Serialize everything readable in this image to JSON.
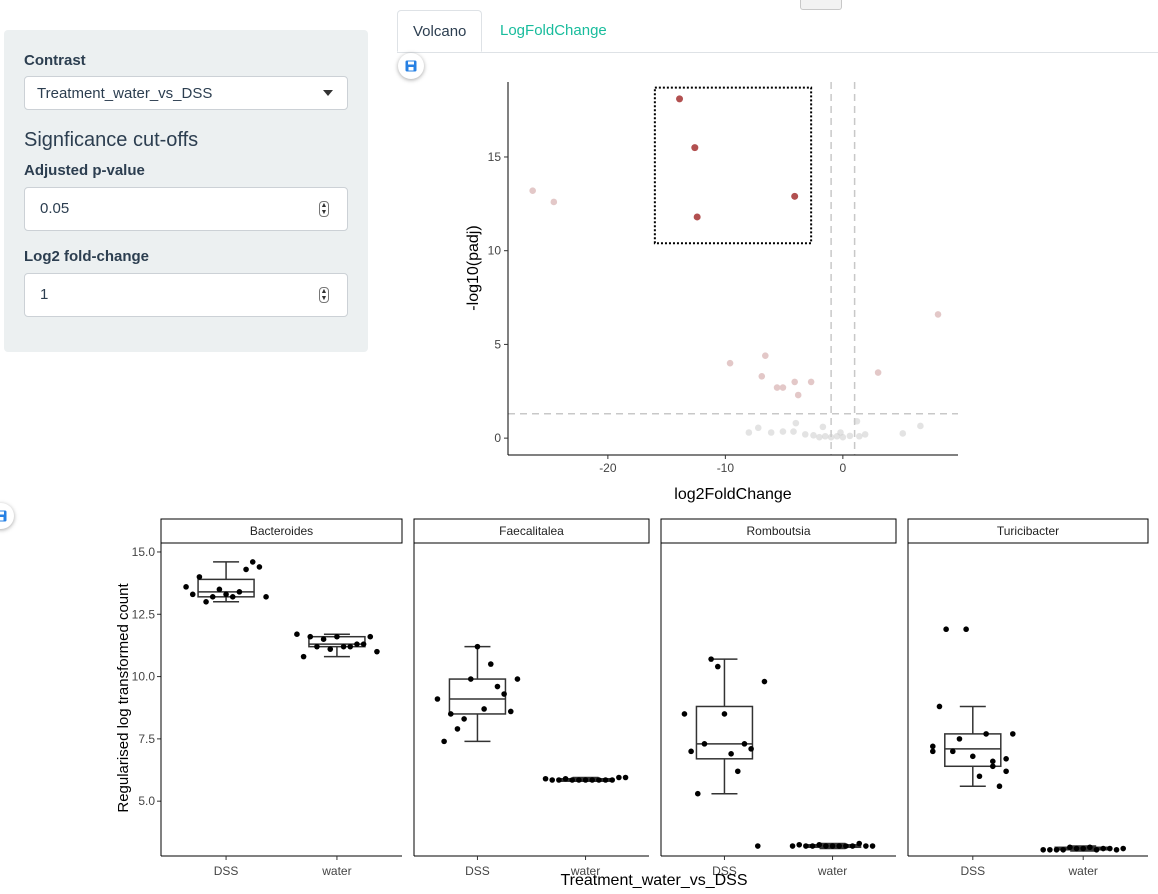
{
  "sidebar": {
    "contrast_label": "Contrast",
    "contrast_value": "Treatment_water_vs_DSS",
    "section_title": "Signficance cut-offs",
    "padj_label": "Adjusted p-value",
    "padj_value": "0.05",
    "lfc_label": "Log2 fold-change",
    "lfc_value": "1"
  },
  "tabs": [
    "Volcano",
    "LogFoldChange"
  ],
  "icons": {
    "save": "floppy-disk-icon",
    "dropdown": "caret-down-icon",
    "spinner": "number-spinner-icon"
  },
  "colors": {
    "accent": "#18bc9c",
    "sig_point": "#b25050",
    "nonsig_point": "#e3c8c8",
    "ns_point": "#cccccc",
    "save_icon": "#2780e3"
  },
  "chart_data": [
    {
      "type": "scatter",
      "title": "",
      "xlabel": "log2FoldChange",
      "ylabel": "-log10(padj)",
      "xlim": [
        -28.5,
        9.8
      ],
      "ylim": [
        -0.9,
        19
      ],
      "xticks": [
        -20,
        -10,
        0
      ],
      "yticks": [
        0,
        5,
        10,
        15
      ],
      "grid": false,
      "thresholds": {
        "x": [
          -1,
          1
        ],
        "y": 1.3
      },
      "selection_box": {
        "x": [
          -16,
          -2.7
        ],
        "y": [
          10.4,
          18.7
        ]
      },
      "significant_points": [
        {
          "x": -13.9,
          "y": 18.1
        },
        {
          "x": -12.6,
          "y": 15.5
        },
        {
          "x": -12.4,
          "y": 11.8
        },
        {
          "x": -4.1,
          "y": 12.9
        }
      ],
      "other_points": [
        {
          "x": -26.4,
          "y": 13.2
        },
        {
          "x": -24.6,
          "y": 12.6
        },
        {
          "x": 8.1,
          "y": 6.6
        },
        {
          "x": -9.6,
          "y": 4.0
        },
        {
          "x": -6.6,
          "y": 4.4
        },
        {
          "x": -6.9,
          "y": 3.3
        },
        {
          "x": -5.6,
          "y": 2.7
        },
        {
          "x": -5.1,
          "y": 2.7
        },
        {
          "x": -4.1,
          "y": 3.0
        },
        {
          "x": -2.7,
          "y": 3.0
        },
        {
          "x": -3.8,
          "y": 2.3
        },
        {
          "x": 3.0,
          "y": 3.5
        }
      ],
      "ns_points": [
        {
          "x": -7.2,
          "y": 0.55
        },
        {
          "x": -6.1,
          "y": 0.3
        },
        {
          "x": -5.1,
          "y": 0.35
        },
        {
          "x": -4.2,
          "y": 0.35
        },
        {
          "x": -3.2,
          "y": 0.2
        },
        {
          "x": -2.5,
          "y": 0.15
        },
        {
          "x": -2.0,
          "y": 0.05
        },
        {
          "x": -1.5,
          "y": 0.1
        },
        {
          "x": -1.0,
          "y": 0.05
        },
        {
          "x": -0.5,
          "y": 0.1
        },
        {
          "x": 0.0,
          "y": 0.05
        },
        {
          "x": 0.6,
          "y": 0.12
        },
        {
          "x": 1.4,
          "y": 0.1
        },
        {
          "x": 1.9,
          "y": 0.2
        },
        {
          "x": 5.1,
          "y": 0.25
        },
        {
          "x": 6.6,
          "y": 0.65
        },
        {
          "x": -4.0,
          "y": 0.8
        },
        {
          "x": -1.7,
          "y": 0.6
        },
        {
          "x": 1.2,
          "y": 0.9
        },
        {
          "x": -8.0,
          "y": 0.3
        },
        {
          "x": -0.2,
          "y": 0.3
        }
      ]
    },
    {
      "type": "box",
      "xlabel": "Treatment_water_vs_DSS",
      "ylabel": "Regularised log transformed count",
      "ylim": [
        2.8,
        15.4
      ],
      "yticks": [
        "15.0",
        "12.5",
        "10.0",
        "7.5",
        "5.0"
      ],
      "ytick_values": [
        15,
        12.5,
        10,
        7.5,
        5
      ],
      "categories": [
        "DSS",
        "water"
      ],
      "panels": [
        {
          "name": "Bacteroides",
          "boxes": [
            {
              "q1": 13.2,
              "med": 13.4,
              "q3": 13.9,
              "lo": 13.0,
              "hi": 14.6
            },
            {
              "q1": 11.2,
              "med": 11.3,
              "q3": 11.6,
              "lo": 10.8,
              "hi": 11.7
            }
          ],
          "points": [
            [
              13.6,
              14.4,
              14.3,
              13.2,
              13.5,
              13.0,
              13.3,
              13.2,
              14.6,
              13.4,
              13.3,
              13.2,
              14.0
            ],
            [
              11.7,
              11.6,
              11.3,
              11.2,
              11.1,
              11.2,
              10.8,
              11.0,
              11.3,
              11.2,
              11.6,
              11.5,
              11.6
            ]
          ]
        },
        {
          "name": "Faecalitalea",
          "boxes": [
            {
              "q1": 8.5,
              "med": 9.1,
              "q3": 9.9,
              "lo": 7.4,
              "hi": 11.2
            },
            {
              "q1": 5.8,
              "med": 5.85,
              "q3": 5.9,
              "lo": 5.8,
              "hi": 5.95
            }
          ],
          "points": [
            [
              9.1,
              8.6,
              9.6,
              8.7,
              9.9,
              7.9,
              7.4,
              9.9,
              9.3,
              10.5,
              11.2,
              8.3,
              8.5
            ],
            [
              5.9,
              5.95,
              5.85,
              5.85,
              5.85,
              5.9,
              5.85,
              5.95,
              5.85,
              5.85,
              5.85,
              5.85,
              5.85
            ]
          ]
        },
        {
          "name": "Romboutsia",
          "boxes": [
            {
              "q1": 6.7,
              "med": 7.3,
              "q3": 8.8,
              "lo": 5.3,
              "hi": 10.7
            },
            {
              "q1": 3.15,
              "med": 3.2,
              "q3": 3.25,
              "lo": 3.1,
              "hi": 3.3
            }
          ],
          "points": [
            [
              8.5,
              3.2,
              7.3,
              6.9,
              10.4,
              7.3,
              7.0,
              9.8,
              7.1,
              6.2,
              8.5,
              10.7,
              5.3
            ],
            [
              3.2,
              3.2,
              3.2,
              3.2,
              3.2,
              3.2,
              3.25,
              3.2,
              3.3,
              3.2,
              3.2,
              3.25,
              3.2
            ]
          ]
        },
        {
          "name": "Turicibacter",
          "boxes": [
            {
              "q1": 6.4,
              "med": 7.1,
              "q3": 7.7,
              "lo": 5.6,
              "hi": 8.8
            },
            {
              "q1": 3.05,
              "med": 3.1,
              "q3": 3.15,
              "lo": 3.0,
              "hi": 3.2
            }
          ],
          "points": [
            [
              7.2,
              6.2,
              6.4,
              6.0,
              11.9,
              7.0,
              8.8,
              7.7,
              5.6,
              7.7,
              6.8,
              7.5,
              11.9,
              7.0,
              6.7,
              6.6
            ],
            [
              3.05,
              3.05,
              3.1,
              3.15,
              3.1,
              3.05,
              3.05,
              3.1,
              3.1,
              3.05,
              3.1,
              3.15,
              3.05
            ]
          ]
        }
      ]
    }
  ]
}
